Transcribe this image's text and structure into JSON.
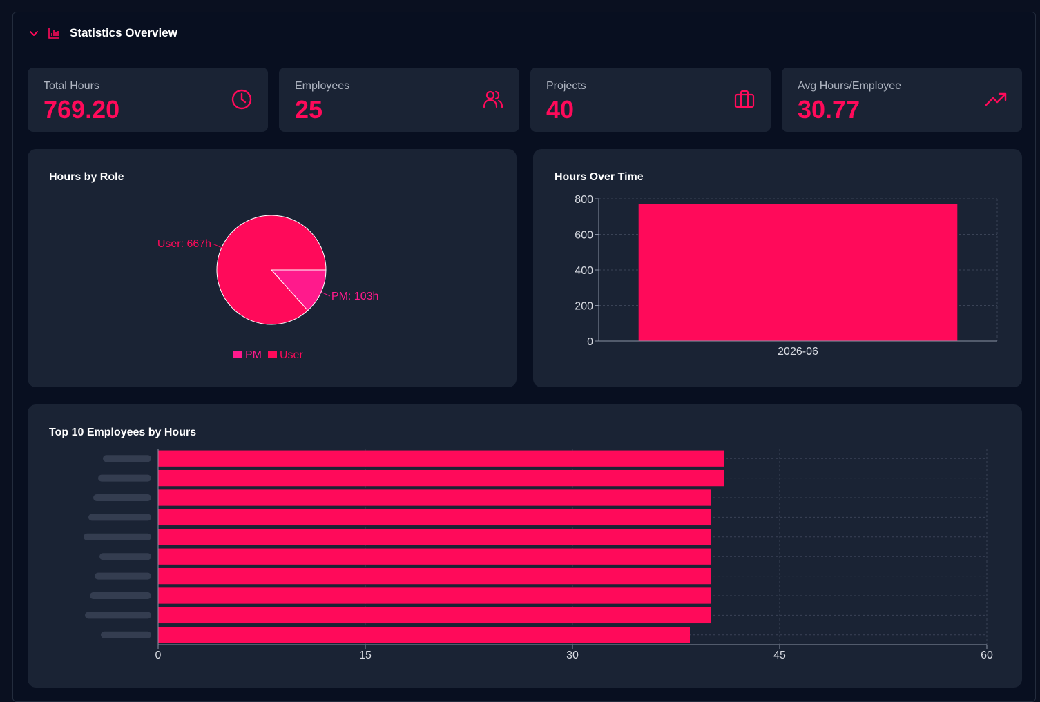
{
  "header": {
    "title": "Statistics Overview"
  },
  "stats": [
    {
      "label": "Total Hours",
      "value": "769.20",
      "icon": "clock-icon"
    },
    {
      "label": "Employees",
      "value": "25",
      "icon": "users-icon"
    },
    {
      "label": "Projects",
      "value": "40",
      "icon": "briefcase-icon"
    },
    {
      "label": "Avg Hours/Employee",
      "value": "30.77",
      "icon": "trending-up-icon"
    }
  ],
  "colors": {
    "accent": "#ff0a5a",
    "accent_alt": "#ff1a8c",
    "card_bg": "#1a2334",
    "page_bg": "#080f20"
  },
  "chart_data": [
    {
      "type": "pie",
      "title": "Hours by Role",
      "slices": [
        {
          "name": "PM",
          "value": 103,
          "label": "PM: 103h",
          "color": "#ff1a8c"
        },
        {
          "name": "User",
          "value": 667,
          "label": "User: 667h",
          "color": "#ff0a5a"
        }
      ],
      "legend": [
        "PM",
        "User"
      ],
      "legend_position": "bottom"
    },
    {
      "type": "bar",
      "title": "Hours Over Time",
      "categories": [
        "2026-06"
      ],
      "values": [
        769.2
      ],
      "ylim": [
        0,
        800
      ],
      "yticks": [
        "0",
        "200",
        "400",
        "600",
        "800"
      ],
      "grid": true
    },
    {
      "type": "bar",
      "orientation": "horizontal",
      "title": "Top 10 Employees by Hours",
      "categories": [
        "",
        "",
        "",
        "",
        "",
        "",
        "",
        "",
        "",
        ""
      ],
      "values": [
        41,
        41,
        40,
        40,
        40,
        40,
        40,
        40,
        40,
        38.5
      ],
      "xlim": [
        0,
        60
      ],
      "xticks": [
        "0",
        "15",
        "30",
        "45",
        "60"
      ],
      "grid": true,
      "category_labels_obscured": true
    }
  ]
}
